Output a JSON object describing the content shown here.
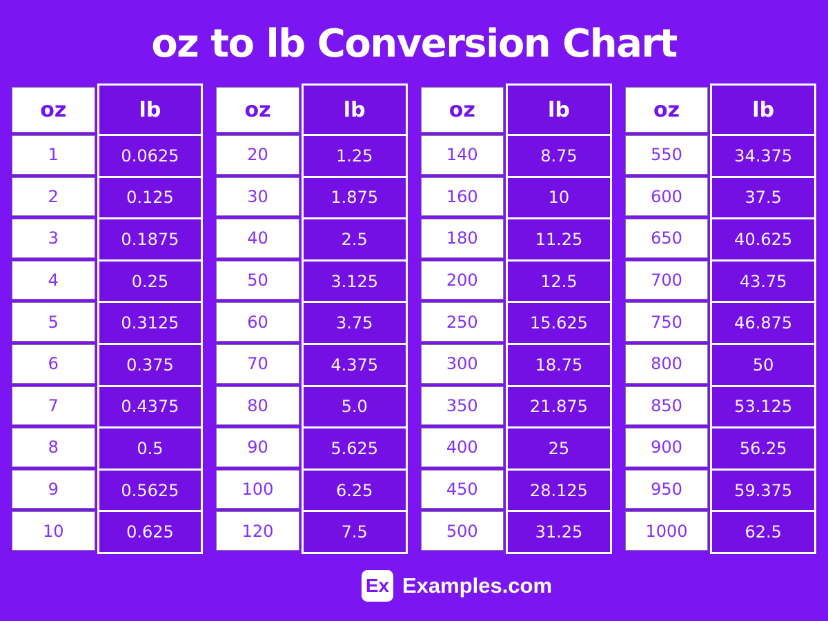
{
  "page": {
    "title": "oz to lb Conversion Chart",
    "colors": {
      "background": "#7B15F2",
      "cell_purple": "#7410E3",
      "oz_value_text": "#8430F5",
      "oz_header_text": "#7315E9",
      "lb_value_text": "#F7F2FF"
    }
  },
  "chart_data": {
    "type": "table",
    "title": "oz to lb Conversion Chart",
    "columns": [
      "oz",
      "lb"
    ],
    "tables": [
      {
        "rows": [
          [
            "1",
            "0.0625"
          ],
          [
            "2",
            "0.125"
          ],
          [
            "3",
            "0.1875"
          ],
          [
            "4",
            "0.25"
          ],
          [
            "5",
            "0.3125"
          ],
          [
            "6",
            "0.375"
          ],
          [
            "7",
            "0.4375"
          ],
          [
            "8",
            "0.5"
          ],
          [
            "9",
            "0.5625"
          ],
          [
            "10",
            "0.625"
          ]
        ]
      },
      {
        "rows": [
          [
            "20",
            "1.25"
          ],
          [
            "30",
            "1.875"
          ],
          [
            "40",
            "2.5"
          ],
          [
            "50",
            "3.125"
          ],
          [
            "60",
            "3.75"
          ],
          [
            "70",
            "4.375"
          ],
          [
            "80",
            "5.0"
          ],
          [
            "90",
            "5.625"
          ],
          [
            "100",
            "6.25"
          ],
          [
            "120",
            "7.5"
          ]
        ]
      },
      {
        "rows": [
          [
            "140",
            "8.75"
          ],
          [
            "160",
            "10"
          ],
          [
            "180",
            "11.25"
          ],
          [
            "200",
            "12.5"
          ],
          [
            "250",
            "15.625"
          ],
          [
            "300",
            "18.75"
          ],
          [
            "350",
            "21.875"
          ],
          [
            "400",
            "25"
          ],
          [
            "450",
            "28.125"
          ],
          [
            "500",
            "31.25"
          ]
        ]
      },
      {
        "rows": [
          [
            "550",
            "34.375"
          ],
          [
            "600",
            "37.5"
          ],
          [
            "650",
            "40.625"
          ],
          [
            "700",
            "43.75"
          ],
          [
            "750",
            "46.875"
          ],
          [
            "800",
            "50"
          ],
          [
            "850",
            "53.125"
          ],
          [
            "900",
            "56.25"
          ],
          [
            "950",
            "59.375"
          ],
          [
            "1000",
            "62.5"
          ]
        ]
      }
    ]
  },
  "footer": {
    "badge": "Ex",
    "site": "Examples.com"
  }
}
